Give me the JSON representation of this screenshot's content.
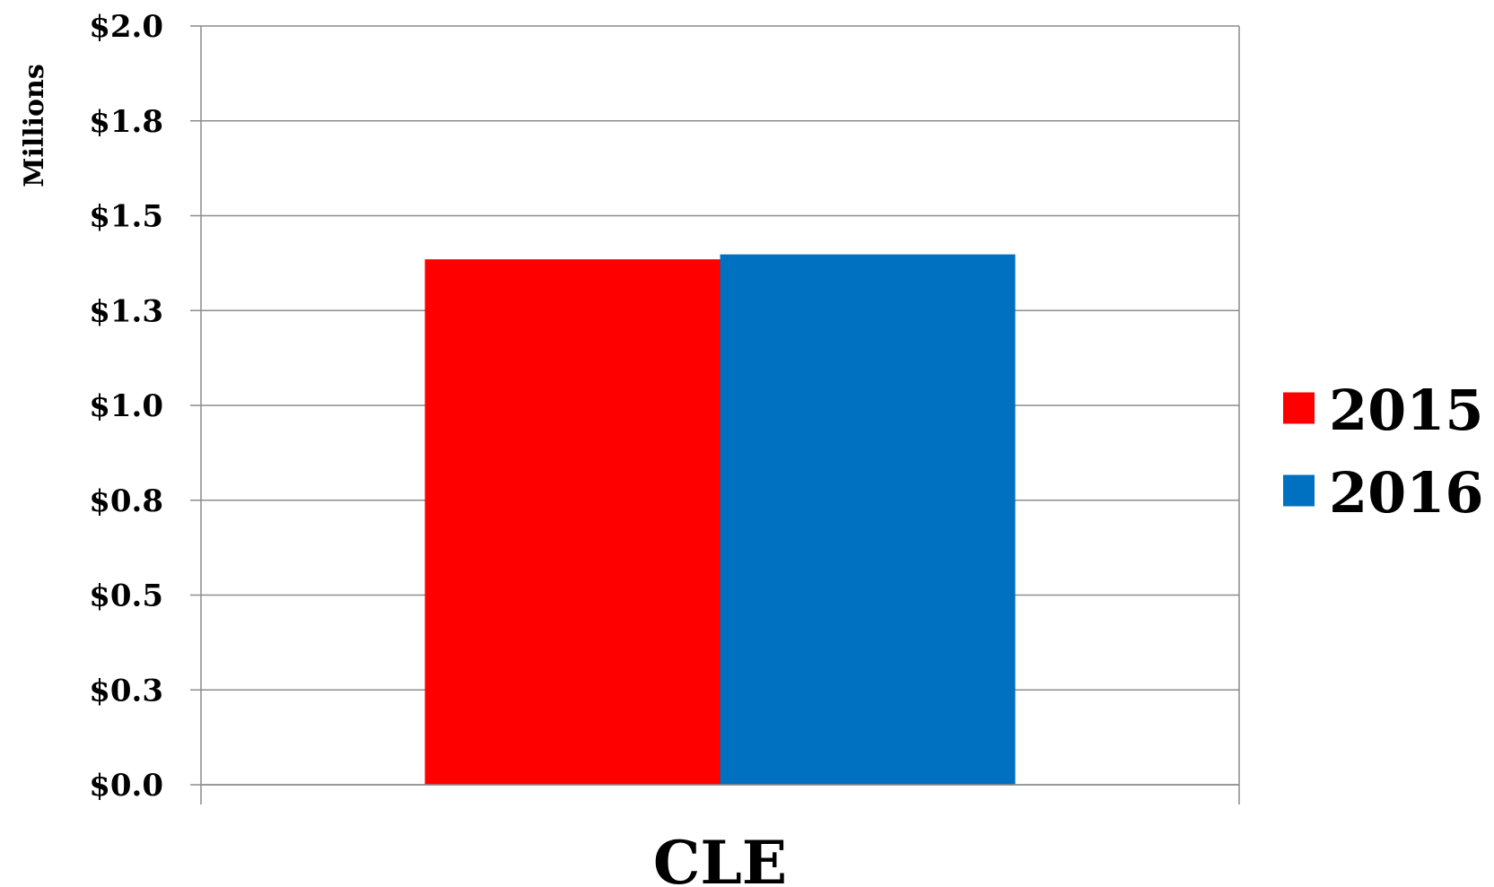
{
  "chart_data": {
    "type": "bar",
    "ylabel": "Millions",
    "categories": [
      "CLE"
    ],
    "series": [
      {
        "name": "2015",
        "color": "#ff0000",
        "values": [
          1.385
        ]
      },
      {
        "name": "2016",
        "color": "#0070c0",
        "values": [
          1.398
        ]
      }
    ],
    "ylim": [
      0,
      2.0
    ],
    "yticks": [
      0.0,
      0.25,
      0.5,
      0.75,
      1.0,
      1.25,
      1.5,
      1.75,
      2.0
    ],
    "ytick_labels": [
      "$0.0",
      "$0.3",
      "$0.5",
      "$0.8",
      "$1.0",
      "$1.3",
      "$1.5",
      "$1.8",
      "$2.0"
    ],
    "grid": true,
    "legend": "right"
  }
}
